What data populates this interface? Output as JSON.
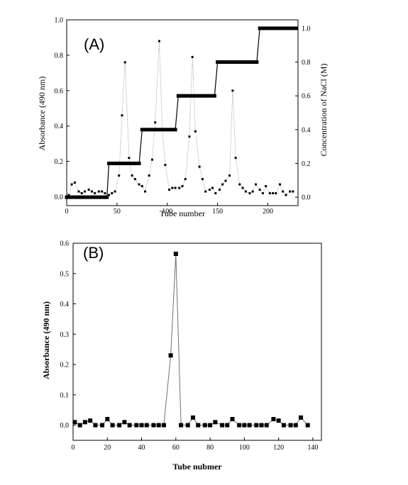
{
  "chart_data": [
    {
      "type": "scatter",
      "panel_label": "(A)",
      "xlabel": "Tube number",
      "ylabel": "Absorbance (490 nm)",
      "y2label": "Concentration of NaCl (M)",
      "xlim": [
        0,
        230
      ],
      "ylim": [
        -0.05,
        1.0
      ],
      "y2lim": [
        -0.05,
        1.05
      ],
      "xticks": [
        0,
        50,
        100,
        150,
        200
      ],
      "yticks": [
        0.0,
        0.2,
        0.4,
        0.6,
        0.8,
        1.0
      ],
      "y2ticks": [
        0.0,
        0.2,
        0.4,
        0.6,
        0.8,
        1.0
      ],
      "xtick_labels": [
        "0",
        "50",
        "100",
        "150",
        "200"
      ],
      "ytick_labels": [
        "0.0",
        "0.2",
        "0.4",
        "0.6",
        "0.8",
        "1.0"
      ],
      "y2tick_labels": [
        "0.0",
        "0.2",
        "0.4",
        "0.6",
        "0.8",
        "1.0"
      ],
      "series": [
        {
          "axis": "left",
          "style": "dotted-line-with-small-markers",
          "x": [
            2,
            5,
            8,
            12,
            15,
            18,
            22,
            25,
            28,
            32,
            35,
            38,
            42,
            45,
            48,
            52,
            55,
            58,
            62,
            65,
            68,
            72,
            75,
            78,
            82,
            85,
            88,
            92,
            95,
            98,
            102,
            105,
            108,
            112,
            115,
            118,
            122,
            125,
            128,
            132,
            135,
            138,
            142,
            145,
            148,
            152,
            155,
            158,
            162,
            165,
            168,
            172,
            175,
            178,
            182,
            185,
            188,
            192,
            195,
            198,
            202,
            205,
            208,
            212,
            215,
            218,
            222,
            225
          ],
          "y": [
            0.01,
            0.07,
            0.08,
            0.03,
            0.02,
            0.03,
            0.04,
            0.03,
            0.02,
            0.03,
            0.03,
            0.02,
            0.01,
            0.02,
            0.03,
            0.12,
            0.46,
            0.76,
            0.22,
            0.12,
            0.1,
            0.07,
            0.06,
            0.03,
            0.12,
            0.21,
            0.42,
            0.88,
            0.38,
            0.18,
            0.04,
            0.05,
            0.05,
            0.05,
            0.06,
            0.1,
            0.34,
            0.79,
            0.37,
            0.17,
            0.1,
            0.03,
            0.04,
            0.05,
            0.02,
            0.04,
            0.07,
            0.09,
            0.12,
            0.6,
            0.22,
            0.07,
            0.05,
            0.03,
            0.02,
            0.03,
            0.07,
            0.04,
            0.02,
            0.06,
            0.02,
            0.02,
            0.02,
            0.07,
            0.03,
            0.01,
            0.03,
            0.03
          ]
        },
        {
          "axis": "right",
          "style": "step-line-with-square-markers",
          "x": [
            0,
            2,
            5,
            8,
            11,
            14,
            17,
            20,
            23,
            26,
            29,
            32,
            35,
            38,
            40,
            42,
            45,
            48,
            51,
            54,
            57,
            60,
            63,
            66,
            69,
            72,
            75,
            78,
            81,
            84,
            87,
            90,
            93,
            96,
            99,
            102,
            105,
            108,
            111,
            114,
            117,
            120,
            123,
            126,
            129,
            132,
            135,
            138,
            141,
            144,
            147,
            150,
            153,
            156,
            159,
            162,
            165,
            168,
            171,
            174,
            177,
            180,
            183,
            186,
            189,
            192,
            195,
            198,
            201,
            204,
            207,
            210,
            213,
            216,
            219,
            222,
            225,
            228
          ],
          "y": [
            0,
            0,
            0,
            0,
            0,
            0,
            0,
            0,
            0,
            0,
            0,
            0,
            0,
            0,
            0,
            0.2,
            0.2,
            0.2,
            0.2,
            0.2,
            0.2,
            0.2,
            0.2,
            0.2,
            0.2,
            0.2,
            0.4,
            0.4,
            0.4,
            0.4,
            0.4,
            0.4,
            0.4,
            0.4,
            0.4,
            0.4,
            0.4,
            0.4,
            0.6,
            0.6,
            0.6,
            0.6,
            0.6,
            0.6,
            0.6,
            0.6,
            0.6,
            0.6,
            0.6,
            0.6,
            0.6,
            0.8,
            0.8,
            0.8,
            0.8,
            0.8,
            0.8,
            0.8,
            0.8,
            0.8,
            0.8,
            0.8,
            0.8,
            0.8,
            0.8,
            1.0,
            1.0,
            1.0,
            1.0,
            1.0,
            1.0,
            1.0,
            1.0,
            1.0,
            1.0,
            1.0,
            1.0,
            1.0
          ]
        }
      ]
    },
    {
      "type": "line",
      "panel_label": "(B)",
      "xlabel": "Tube nubmer",
      "ylabel": "Absorbance (490 nm)",
      "xlim": [
        0,
        145
      ],
      "ylim": [
        -0.05,
        0.6
      ],
      "xticks": [
        0,
        20,
        40,
        60,
        80,
        100,
        120,
        140
      ],
      "yticks": [
        0.0,
        0.1,
        0.2,
        0.3,
        0.4,
        0.5,
        0.6
      ],
      "xtick_labels": [
        "0",
        "20",
        "40",
        "60",
        "80",
        "100",
        "120",
        "140"
      ],
      "ytick_labels": [
        "0.0",
        "0.1",
        "0.2",
        "0.3",
        "0.4",
        "0.5",
        "0.6"
      ],
      "series": [
        {
          "style": "solid-line-with-square-markers",
          "x": [
            1,
            4,
            7,
            10,
            13,
            17,
            20,
            23,
            27,
            30,
            33,
            37,
            40,
            43,
            47,
            50,
            53,
            57,
            60,
            63,
            67,
            70,
            73,
            77,
            80,
            83,
            87,
            90,
            93,
            97,
            100,
            103,
            107,
            110,
            113,
            117,
            120,
            123,
            127,
            130,
            133,
            137
          ],
          "y": [
            0.01,
            0.0,
            0.01,
            0.015,
            0.0,
            0.0,
            0.02,
            0.0,
            0.0,
            0.01,
            0.0,
            0.0,
            0.0,
            0.0,
            0.0,
            0.0,
            0.0,
            0.23,
            0.565,
            0.0,
            0.0,
            0.025,
            0.0,
            0.0,
            0.0,
            0.01,
            0.0,
            0.0,
            0.02,
            0.0,
            0.0,
            0.0,
            0.0,
            0.0,
            0.0,
            0.02,
            0.015,
            0.0,
            0.0,
            0.0,
            0.025,
            0.0
          ]
        }
      ]
    }
  ]
}
